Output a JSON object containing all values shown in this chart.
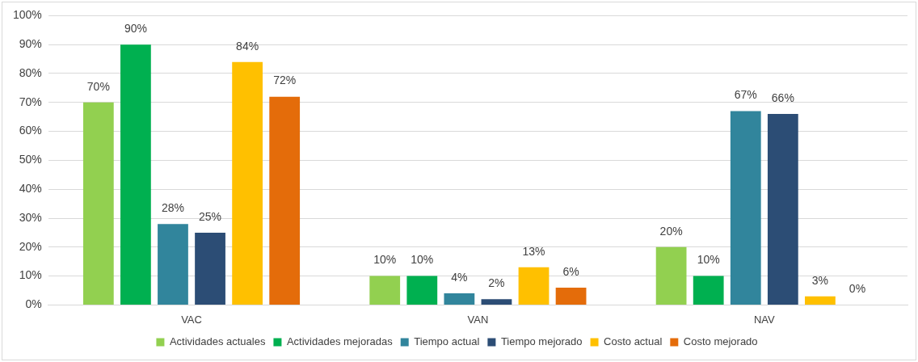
{
  "chart_data": {
    "type": "bar",
    "categories": [
      "VAC",
      "VAN",
      "NAV"
    ],
    "series": [
      {
        "name": "Actividades actuales",
        "color": "#92d050",
        "values": [
          70,
          10,
          20
        ]
      },
      {
        "name": "Actividades mejoradas",
        "color": "#00b050",
        "values": [
          90,
          10,
          10
        ]
      },
      {
        "name": "Tiempo actual",
        "color": "#31859c",
        "values": [
          28,
          4,
          67
        ]
      },
      {
        "name": "Tiempo mejorado",
        "color": "#2c4d75",
        "values": [
          25,
          2,
          66
        ]
      },
      {
        "name": "Costo actual",
        "color": "#ffc000",
        "values": [
          84,
          13,
          3
        ]
      },
      {
        "name": "Costo mejorado",
        "color": "#e46c0a",
        "values": [
          72,
          6,
          0
        ]
      }
    ],
    "ylim": [
      0,
      100
    ],
    "yticks": [
      {
        "value": 0,
        "label": "0%"
      },
      {
        "value": 10,
        "label": "10%"
      },
      {
        "value": 20,
        "label": "20%"
      },
      {
        "value": 30,
        "label": "30%"
      },
      {
        "value": 40,
        "label": "40%"
      },
      {
        "value": 50,
        "label": "50%"
      },
      {
        "value": 60,
        "label": "60%"
      },
      {
        "value": 70,
        "label": "70%"
      },
      {
        "value": 80,
        "label": "80%"
      },
      {
        "value": 90,
        "label": "90%"
      },
      {
        "value": 100,
        "label": "100%"
      }
    ],
    "value_labels": [
      [
        "70%",
        "10%",
        "20%"
      ],
      [
        "90%",
        "10%",
        "10%"
      ],
      [
        "28%",
        "4%",
        "67%"
      ],
      [
        "25%",
        "2%",
        "66%"
      ],
      [
        "84%",
        "13%",
        "3%"
      ],
      [
        "72%",
        "6%",
        "0%"
      ]
    ],
    "grid": "y",
    "legend": "bottom"
  }
}
